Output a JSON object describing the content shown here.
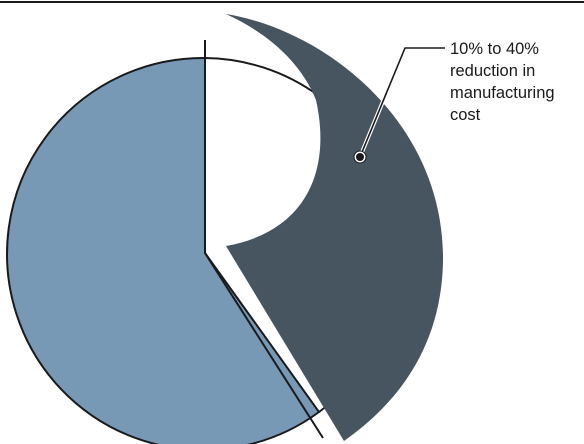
{
  "diagram": {
    "colors": {
      "background": "#ffffff",
      "remaining_slice": "#7799b6",
      "reduction_slice": "#46555f",
      "outline": "#1a1a1a"
    },
    "callout": {
      "lines": [
        "10% to 40%",
        "reduction in",
        "manufacturing",
        "cost"
      ]
    }
  }
}
